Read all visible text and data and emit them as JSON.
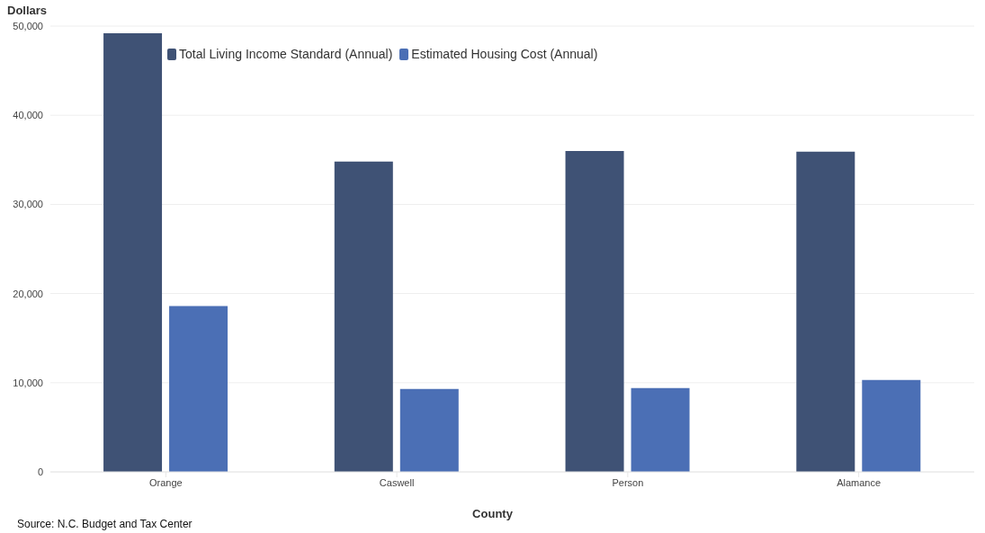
{
  "chart_data": {
    "type": "bar",
    "ylabel": "Dollars",
    "xlabel": "County",
    "categories": [
      "Orange",
      "Caswell",
      "Person",
      "Alamance"
    ],
    "series": [
      {
        "name": "Total Living Income Standard (Annual)",
        "color": "#3f5275",
        "values": [
          49200,
          34800,
          36000,
          35900
        ]
      },
      {
        "name": "Estimated Housing Cost (Annual)",
        "color": "#4b6fb5",
        "values": [
          18600,
          9300,
          9400,
          10300
        ]
      }
    ],
    "ylim": [
      0,
      50000
    ],
    "yticks": [
      0,
      {
        "value": 10000,
        "label": "10,000"
      },
      {
        "value": 20000,
        "label": "20,000"
      },
      {
        "value": 30000,
        "label": "30,000"
      },
      {
        "value": 40000,
        "label": "40,000"
      },
      {
        "value": 50000,
        "label": "50,000"
      }
    ],
    "grid": "y",
    "legend": "top",
    "annotations": [
      "Source: N.C. Budget and Tax Center"
    ]
  }
}
